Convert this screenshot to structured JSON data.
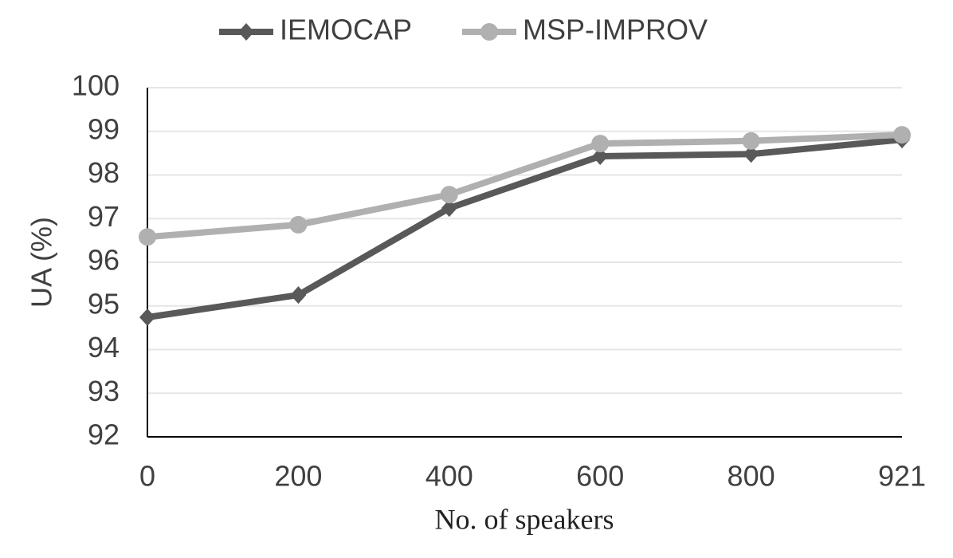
{
  "chart_data": {
    "type": "line",
    "x_label": "No. of speakers",
    "y_label": "UA (%)",
    "categories": [
      "0",
      "200",
      "400",
      "600",
      "800",
      "921"
    ],
    "series": [
      {
        "name": "IEMOCAP",
        "color": "#595959",
        "marker": "diamond",
        "values": [
          94.74,
          95.25,
          97.24,
          98.43,
          98.48,
          98.81
        ]
      },
      {
        "name": "MSP-IMPROV",
        "color": "#b0b0b0",
        "marker": "circle",
        "values": [
          96.58,
          96.86,
          97.55,
          98.72,
          98.78,
          98.92
        ]
      }
    ],
    "ylim": [
      92,
      100
    ],
    "yticks": [
      92,
      93,
      94,
      95,
      96,
      97,
      98,
      99,
      100
    ],
    "grid": true,
    "legend": "top"
  }
}
